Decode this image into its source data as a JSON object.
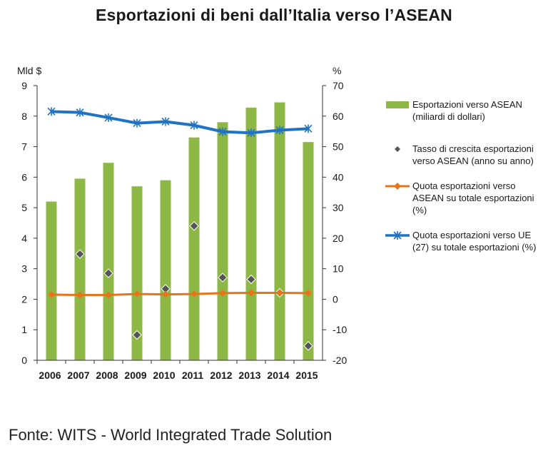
{
  "title": "Esportazioni di beni dall’Italia verso l’ASEAN",
  "source": "Fonte: WITS - World Integrated Trade Solution",
  "colors": {
    "bars": "#8db845",
    "diamond": "#555555",
    "orange": "#e8741a",
    "blue": "#2073c4",
    "axis": "#333333"
  },
  "chart_data": {
    "type": "bar",
    "categories": [
      "2006",
      "2007",
      "2008",
      "2009",
      "2010",
      "2011",
      "2012",
      "2013",
      "2014",
      "2015"
    ],
    "left_axis": {
      "unit_label": "Mld $",
      "range": [
        0,
        9
      ],
      "ticks": [
        "0",
        "1",
        "2",
        "3",
        "4",
        "5",
        "6",
        "7",
        "8",
        "9"
      ]
    },
    "right_axis": {
      "unit_label": "%",
      "range": [
        -20,
        70
      ],
      "ticks": [
        "-20",
        "-10",
        "0",
        "10",
        "20",
        "30",
        "40",
        "50",
        "60",
        "70"
      ]
    },
    "grid": false,
    "legend_position": "right",
    "series": [
      {
        "name": "Esportazioni verso ASEAN (miliardi di dollari)",
        "type": "bar",
        "axis": "left",
        "values": [
          5.2,
          5.95,
          6.47,
          5.7,
          5.9,
          7.3,
          7.8,
          8.28,
          8.45,
          7.15
        ]
      },
      {
        "name": "Tasso di crescita esportazioni verso ASEAN (anno su anno)",
        "type": "scatter",
        "axis": "right",
        "values": [
          null,
          14.8,
          8.5,
          -11.7,
          3.4,
          24.0,
          7.1,
          6.5,
          2.1,
          -15.3
        ]
      },
      {
        "name": "Quota esportazioni verso ASEAN su totale esportazioni (%)",
        "type": "line",
        "axis": "right",
        "values": [
          1.5,
          1.4,
          1.4,
          1.7,
          1.6,
          1.7,
          2.0,
          2.1,
          2.1,
          2.0
        ]
      },
      {
        "name": "Quota esportazioni verso UE (27) su totale esportazioni (%)",
        "type": "line",
        "axis": "right",
        "values": [
          61.5,
          61.2,
          59.5,
          57.7,
          58.2,
          57.0,
          54.9,
          54.5,
          55.4,
          55.9
        ]
      }
    ]
  },
  "legend": [
    {
      "icon": "green-bar-swatch",
      "text": "Esportazioni verso ASEAN (miliardi di dollari)"
    },
    {
      "icon": "gray-diamond-marker",
      "text": "Tasso di crescita esportazioni verso ASEAN (anno su anno)"
    },
    {
      "icon": "orange-diamond-line",
      "text": "Quota esportazioni verso ASEAN su totale esportazioni (%)"
    },
    {
      "icon": "blue-star-line",
      "text": "Quota esportazioni verso UE (27) su totale esportazioni (%)"
    }
  ]
}
